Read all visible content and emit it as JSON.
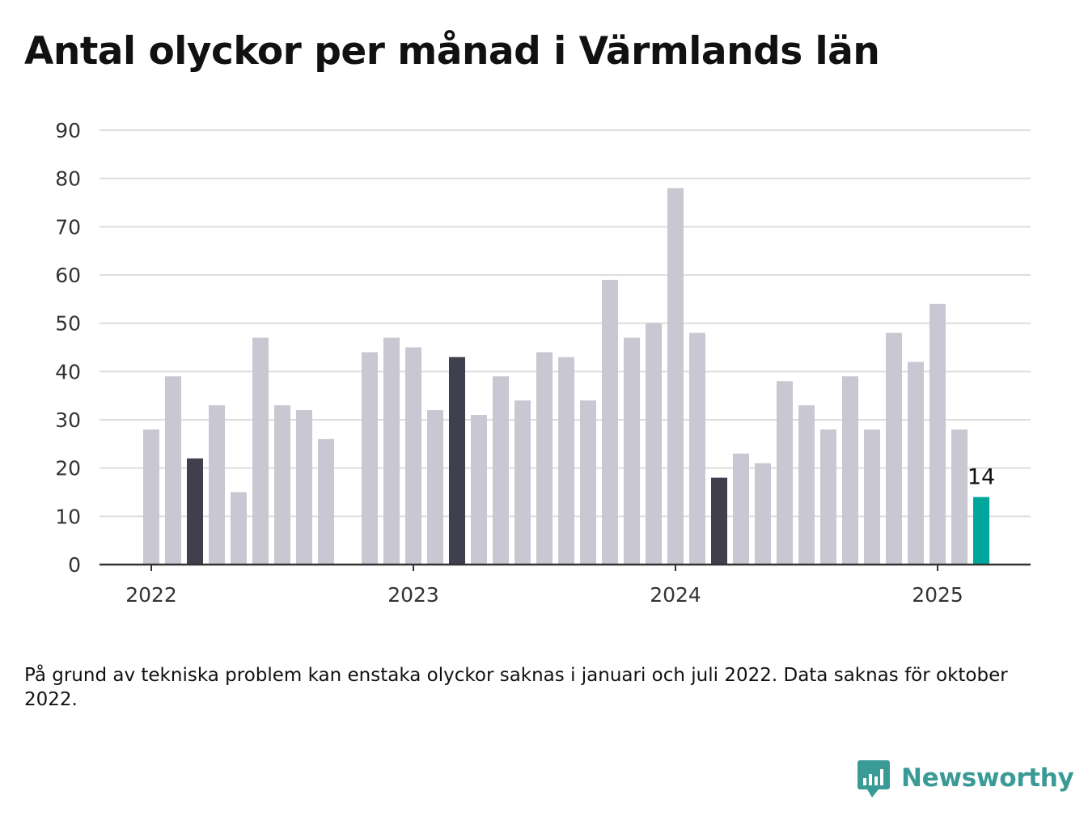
{
  "title": "Antal olyckor per månad i Värmlands län",
  "footnote": "På grund av tekniska problem kan enstaka olyckor saknas i januari och juli 2022. Data saknas för oktober 2022.",
  "brand": {
    "name": "Newsworthy",
    "icon": "newsworthy-logo-icon",
    "color": "#3a9a96"
  },
  "colors": {
    "bar": "#c8c7d2",
    "highlight": "#403f4e",
    "latest": "#00a59b",
    "grid": "#dddddd",
    "axis": "#333333"
  },
  "chart_data": {
    "type": "bar",
    "title": "Antal olyckor per månad i Värmlands län",
    "xlabel": "",
    "ylabel": "",
    "ylim": [
      0,
      90
    ],
    "yticks": [
      0,
      10,
      20,
      30,
      40,
      50,
      60,
      70,
      80,
      90
    ],
    "xticks": [
      "2022",
      "2023",
      "2024",
      "2025"
    ],
    "grid": true,
    "x": [
      "2022-01",
      "2022-02",
      "2022-03",
      "2022-04",
      "2022-05",
      "2022-06",
      "2022-07",
      "2022-08",
      "2022-09",
      "2022-10",
      "2022-11",
      "2022-12",
      "2023-01",
      "2023-02",
      "2023-03",
      "2023-04",
      "2023-05",
      "2023-06",
      "2023-07",
      "2023-08",
      "2023-09",
      "2023-10",
      "2023-11",
      "2023-12",
      "2024-01",
      "2024-02",
      "2024-03",
      "2024-04",
      "2024-05",
      "2024-06",
      "2024-07",
      "2024-08",
      "2024-09",
      "2024-10",
      "2024-11",
      "2024-12",
      "2025-01",
      "2025-02",
      "2025-03"
    ],
    "values": [
      28,
      39,
      22,
      33,
      15,
      47,
      33,
      32,
      26,
      null,
      44,
      47,
      45,
      32,
      43,
      31,
      39,
      34,
      44,
      43,
      34,
      59,
      47,
      50,
      78,
      48,
      18,
      23,
      21,
      38,
      33,
      28,
      39,
      28,
      48,
      42,
      54,
      28,
      14
    ],
    "highlighted": [
      "2022-03",
      "2023-03",
      "2024-03"
    ],
    "latest": "2025-03",
    "data_labels": [
      {
        "x": "2025-03",
        "text": "14"
      }
    ]
  }
}
